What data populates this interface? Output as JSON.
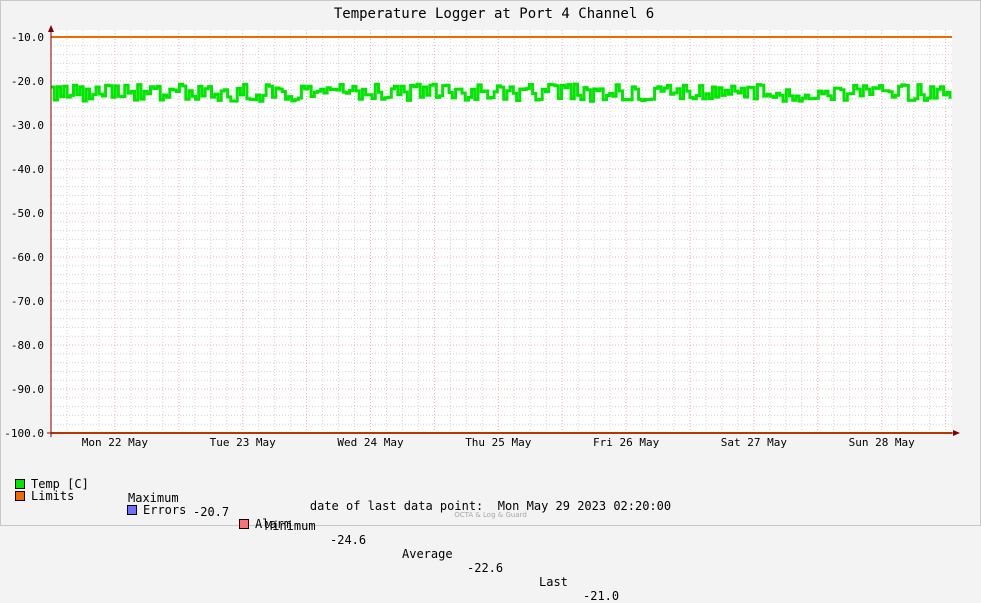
{
  "colors": {
    "temp": "#00e600",
    "limits": "#ee6a00",
    "errors": "#7070ff",
    "alarm": "#ff7070",
    "grid_major": "#e6b4b4",
    "grid_minor": "#d4d4d4",
    "axis": "#800000",
    "background": "#f3f3f3",
    "plot_bg": "#ffffff"
  },
  "chart_data": {
    "type": "line",
    "title": "Temperature Logger at Port 4 Channel 6",
    "xlabel": "",
    "ylabel": "",
    "ylim": [
      -100,
      -10
    ],
    "yticks": [
      -10,
      -20,
      -30,
      -40,
      -50,
      -60,
      -70,
      -80,
      -90,
      -100
    ],
    "ytick_labels": [
      "-10.0",
      "-20.0",
      "-30.0",
      "-40.0",
      "-50.0",
      "-60.0",
      "-70.0",
      "-80.0",
      "-90.0",
      "-100.0"
    ],
    "x_categories": [
      "Mon 22 May",
      "Tue 23 May",
      "Wed 24 May",
      "Thu 25 May",
      "Fri 26 May",
      "Sat 27 May",
      "Sun 28 May"
    ],
    "xlim_days": 7.05,
    "grid": true,
    "series": [
      {
        "name": "Temp [C]",
        "color_key": "temp",
        "band_min": -24.6,
        "band_max": -20.7,
        "mean": -22.6
      },
      {
        "name": "Limits",
        "color_key": "limits",
        "values": [
          -10.0,
          -100.0
        ]
      }
    ]
  },
  "legend": {
    "temp_label": "Temp [C]",
    "maximum_label": "Maximum",
    "maximum_value": "-20.7",
    "minimum_label": "Minimum",
    "minimum_value": "-24.6",
    "average_label": "Average",
    "average_value": "-22.6",
    "last_label": "Last",
    "last_value": "-21.0",
    "limits_label": "Limits",
    "errors_label": "Errors",
    "alarm_label": "Alarm"
  },
  "footer": {
    "last_point_label": "date of last data point:",
    "last_point_value": "Mon May 29 2023 02:20:00",
    "credit": "OCTA & Log & Guard"
  }
}
